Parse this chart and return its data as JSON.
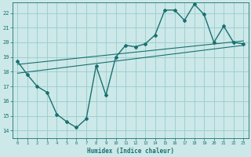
{
  "xlabel": "Humidex (Indice chaleur)",
  "background_color": "#cce8e8",
  "grid_color": "#99cccc",
  "line_color": "#1a7070",
  "xlim": [
    -0.5,
    23.5
  ],
  "ylim": [
    13.5,
    22.7
  ],
  "xticks": [
    0,
    1,
    2,
    3,
    4,
    5,
    6,
    7,
    8,
    9,
    10,
    11,
    12,
    13,
    14,
    15,
    16,
    17,
    18,
    19,
    20,
    21,
    22,
    23
  ],
  "yticks": [
    14,
    15,
    16,
    17,
    18,
    19,
    20,
    21,
    22
  ],
  "curve1_x": [
    0,
    1,
    2,
    3,
    4,
    5,
    6,
    7,
    8,
    9,
    10,
    11,
    12,
    13,
    14,
    15,
    16,
    17,
    18,
    19,
    20,
    21,
    22,
    23
  ],
  "curve1_y": [
    18.7,
    17.8,
    17.0,
    16.6,
    15.1,
    14.6,
    14.2,
    14.8,
    18.4,
    16.4,
    19.0,
    19.8,
    19.7,
    19.9,
    20.5,
    22.2,
    22.2,
    21.5,
    22.6,
    21.9,
    20.0,
    21.1,
    20.0,
    19.9
  ],
  "trend1_x": [
    0,
    23
  ],
  "trend1_y": [
    17.9,
    19.8
  ],
  "trend2_x": [
    0,
    23
  ],
  "trend2_y": [
    18.5,
    20.1
  ],
  "figsize": [
    3.2,
    2.0
  ],
  "dpi": 100
}
